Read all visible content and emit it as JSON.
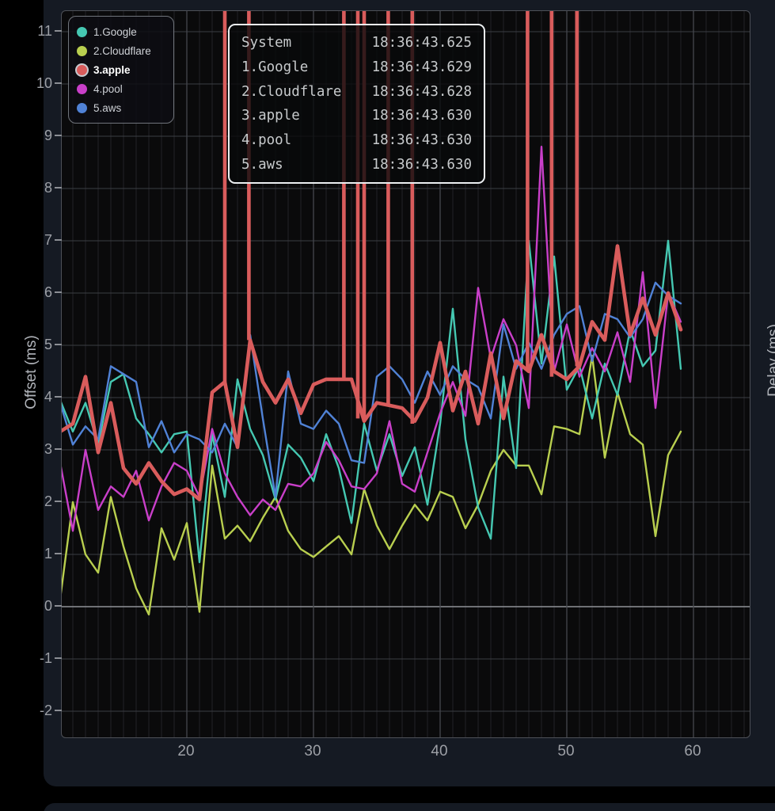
{
  "page": {
    "bg": "#000000",
    "card_bg": "#151a23"
  },
  "axes": {
    "left_label": "Offset (ms)",
    "right_label": "Delay (ms)",
    "y_ticks": [
      -2,
      -1,
      0,
      1,
      2,
      3,
      4,
      5,
      6,
      7,
      8,
      9,
      10,
      11
    ],
    "x_ticks": [
      20,
      30,
      40,
      50,
      60
    ]
  },
  "legend": {
    "items": [
      {
        "label": "1.Google",
        "color": "#45c8b2",
        "selected": false
      },
      {
        "label": "2.Cloudflare",
        "color": "#b9cf4f",
        "selected": false
      },
      {
        "label": "3.apple",
        "color": "#d95c5c",
        "selected": true
      },
      {
        "label": "4.pool",
        "color": "#c93fc9",
        "selected": false
      },
      {
        "label": "5.aws",
        "color": "#5082d6",
        "selected": false
      }
    ]
  },
  "tooltip": {
    "rows": [
      {
        "name": "System",
        "value": "18:36:43.625"
      },
      {
        "name": "1.Google",
        "value": "18:36:43.629"
      },
      {
        "name": "2.Cloudflare",
        "value": "18:36:43.628"
      },
      {
        "name": "3.apple",
        "value": "18:36:43.630"
      },
      {
        "name": "4.pool",
        "value": "18:36:43.630"
      },
      {
        "name": "5.aws",
        "value": "18:36:43.630"
      }
    ]
  },
  "chart_data": {
    "type": "line",
    "title": "",
    "ylabel": "Offset (ms)",
    "right_ylabel": "Delay (ms)",
    "xlim": [
      10.1,
      64.4
    ],
    "ylim": [
      -2.53,
      11.39
    ],
    "x_ticks": [
      20,
      30,
      40,
      50,
      60
    ],
    "y_ticks": [
      -2,
      -1,
      0,
      1,
      2,
      3,
      4,
      5,
      6,
      7,
      8,
      9,
      10,
      11
    ],
    "grid": "on",
    "legend_position": "top-left",
    "x": [
      10,
      11,
      12,
      13,
      14,
      15,
      16,
      17,
      18,
      19,
      20,
      21,
      22,
      23,
      24,
      25,
      26,
      27,
      28,
      29,
      30,
      31,
      32,
      33,
      34,
      35,
      36,
      37,
      38,
      39,
      40,
      41,
      42,
      43,
      44,
      45,
      46,
      47,
      48,
      49,
      50,
      51,
      52,
      53,
      54,
      55,
      56,
      57,
      58,
      59
    ],
    "series": [
      {
        "name": "1.Google",
        "color": "#45c8b2",
        "width": 2.4,
        "values": [
          3.95,
          3.35,
          3.9,
          3.1,
          4.3,
          4.45,
          3.6,
          3.3,
          2.95,
          3.3,
          3.35,
          0.85,
          3.3,
          2.1,
          4.35,
          3.4,
          2.9,
          2.05,
          3.1,
          2.85,
          2.4,
          3.3,
          2.65,
          1.6,
          3.5,
          2.6,
          3.3,
          2.5,
          3.05,
          1.95,
          3.5,
          5.7,
          3.2,
          1.9,
          1.3,
          4.4,
          2.65,
          7.0,
          4.65,
          6.7,
          4.15,
          4.6,
          3.6,
          4.65,
          4.05,
          5.3,
          4.6,
          4.9,
          7.0,
          4.55
        ]
      },
      {
        "name": "2.Cloudflare",
        "color": "#b9cf4f",
        "width": 2.4,
        "values": [
          0.15,
          2.0,
          1.0,
          0.65,
          2.1,
          1.15,
          0.35,
          -0.15,
          1.5,
          0.9,
          1.6,
          -0.1,
          2.7,
          1.3,
          1.55,
          1.25,
          1.7,
          2.1,
          1.45,
          1.1,
          0.95,
          1.15,
          1.35,
          1.0,
          2.25,
          1.55,
          1.1,
          1.55,
          1.95,
          1.65,
          2.2,
          2.1,
          1.5,
          1.95,
          2.6,
          3.0,
          2.7,
          2.7,
          2.15,
          3.45,
          3.4,
          3.3,
          4.8,
          2.85,
          4.1,
          3.3,
          3.1,
          1.35,
          2.9,
          3.35
        ]
      },
      {
        "name": "3.apple",
        "color": "#d95c5c",
        "width": 4.6,
        "values": [
          3.35,
          3.5,
          4.4,
          2.95,
          3.9,
          2.65,
          2.35,
          2.75,
          2.4,
          2.15,
          2.25,
          2.05,
          4.1,
          4.3,
          3.05,
          5.1,
          4.3,
          3.9,
          4.35,
          3.7,
          4.25,
          4.35,
          4.35,
          4.35,
          3.55,
          3.9,
          3.85,
          3.8,
          3.55,
          4.0,
          5.05,
          3.75,
          4.5,
          3.5,
          4.85,
          3.6,
          4.7,
          4.5,
          5.2,
          4.5,
          4.35,
          4.6,
          5.45,
          5.1,
          6.9,
          5.2,
          5.9,
          5.2,
          6.0,
          5.3
        ]
      },
      {
        "name": "4.pool",
        "color": "#c93fc9",
        "width": 2.4,
        "values": [
          2.75,
          1.45,
          3.0,
          1.85,
          2.3,
          2.1,
          2.6,
          1.65,
          2.3,
          2.75,
          2.6,
          2.1,
          3.4,
          2.55,
          2.1,
          1.75,
          2.05,
          1.85,
          2.35,
          2.3,
          2.55,
          3.15,
          2.8,
          2.3,
          2.25,
          2.55,
          3.55,
          2.35,
          2.2,
          2.95,
          3.7,
          4.3,
          3.65,
          6.1,
          4.75,
          5.5,
          5.0,
          3.8,
          8.8,
          4.5,
          5.4,
          4.4,
          4.95,
          4.5,
          5.25,
          4.3,
          6.4,
          3.8,
          6.0,
          5.45
        ]
      },
      {
        "name": "5.aws",
        "color": "#5082d6",
        "width": 2.4,
        "values": [
          3.9,
          3.1,
          3.45,
          3.2,
          4.6,
          4.45,
          4.3,
          3.05,
          3.55,
          2.95,
          3.3,
          3.2,
          2.95,
          3.5,
          3.05,
          5.2,
          3.6,
          2.1,
          4.5,
          3.5,
          3.4,
          3.75,
          3.5,
          2.8,
          2.75,
          4.4,
          4.6,
          4.35,
          3.9,
          4.5,
          4.05,
          4.6,
          4.35,
          4.2,
          3.6,
          5.4,
          4.55,
          5.05,
          4.55,
          5.2,
          5.6,
          5.75,
          4.7,
          5.6,
          5.5,
          5.15,
          5.5,
          6.2,
          5.95,
          5.8
        ]
      }
    ],
    "apple_offscale_spikes": [
      {
        "x": 23.0,
        "bottom": 4.3
      },
      {
        "x": 24.9,
        "bottom": 5.1
      },
      {
        "x": 32.4,
        "bottom": 4.35
      },
      {
        "x": 33.5,
        "bottom": 3.6
      },
      {
        "x": 34.0,
        "bottom": 3.6
      },
      {
        "x": 35.9,
        "bottom": 3.85
      },
      {
        "x": 37.8,
        "bottom": 3.5
      },
      {
        "x": 46.9,
        "bottom": 4.5
      },
      {
        "x": 48.8,
        "bottom": 4.4
      },
      {
        "x": 50.8,
        "bottom": 4.6
      }
    ],
    "colors": {
      "plot_bg": "#0a0a0b",
      "grid_minor": "#232327",
      "grid_major": "#45474d",
      "grid_horizontal": "#3b3d43",
      "zero_line": "#8f9298",
      "tick_text": "#9da0a6"
    }
  }
}
